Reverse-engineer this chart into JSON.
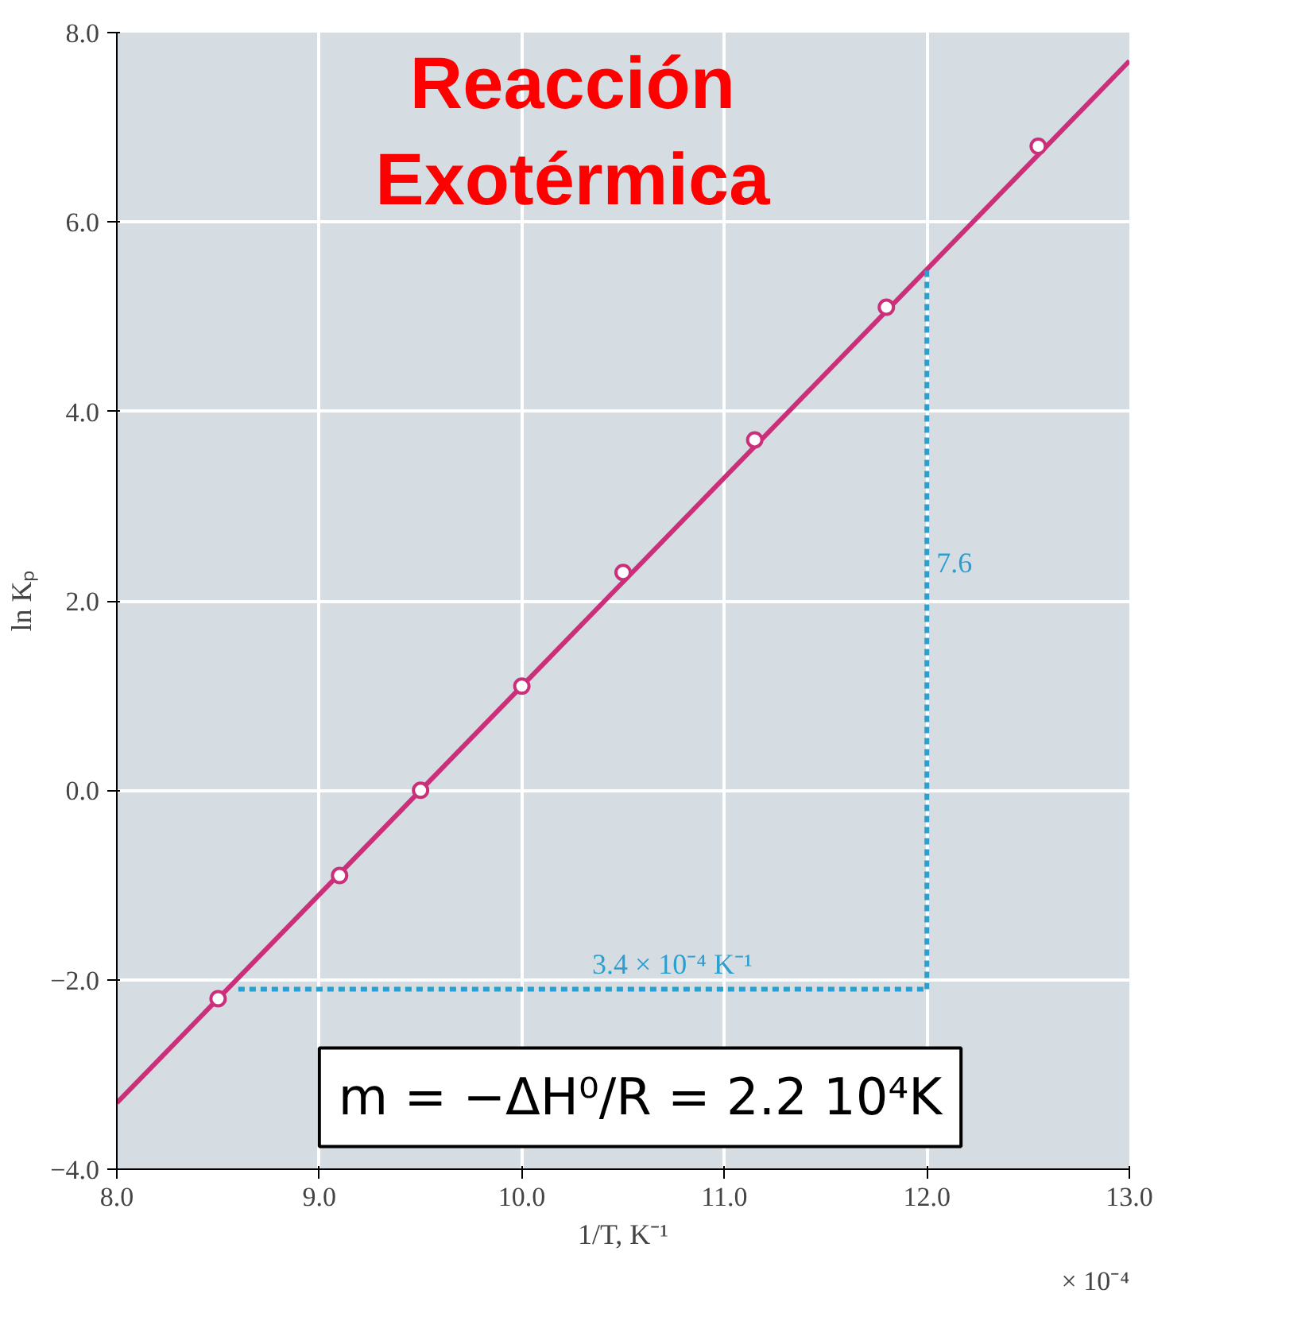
{
  "chart_data": {
    "type": "scatter",
    "title": "Reacción\nExotérmica",
    "xlabel": "1/T, K⁻¹",
    "ylabel": "ln Kₚ",
    "xlim": [
      8.0,
      13.0
    ],
    "xticks": [
      {
        "value": 8,
        "label": "8.0"
      },
      {
        "value": 9,
        "label": "9.0"
      },
      {
        "value": 10,
        "label": "10.0"
      },
      {
        "value": 11,
        "label": "11.0"
      },
      {
        "value": 12,
        "label": "12.0"
      },
      {
        "value": 13,
        "label": "13.0"
      }
    ],
    "ylim": [
      -4.0,
      8.0
    ],
    "yticks": [
      {
        "value": -4,
        "label": "−4.0"
      },
      {
        "value": -2,
        "label": "−2.0"
      },
      {
        "value": 0,
        "label": "0.0"
      },
      {
        "value": 2,
        "label": "2.0"
      },
      {
        "value": 4,
        "label": "4.0"
      },
      {
        "value": 6,
        "label": "6.0"
      },
      {
        "value": 8,
        "label": "8.0"
      }
    ],
    "grid": true,
    "series": [
      {
        "type": "line",
        "color": "#cc2f7a",
        "x": [
          8.0,
          13.0
        ],
        "values": [
          -3.3,
          7.7
        ],
        "marker": "none",
        "line_style": "solid"
      },
      {
        "color": "#cc2f7a",
        "x": [
          8.5,
          9.1,
          9.5,
          10.0,
          10.5,
          11.15,
          11.8,
          12.55
        ],
        "values": [
          -2.2,
          -0.9,
          0.0,
          1.1,
          2.3,
          3.7,
          5.1,
          6.8
        ],
        "marker": "circle"
      },
      {
        "type": "line",
        "color": "#2a9fd0",
        "x": [
          8.6,
          12.0
        ],
        "values": [
          -2.1,
          -2.1
        ],
        "marker": "none",
        "line_style": "dashed"
      },
      {
        "type": "line",
        "color": "#2a9fd0",
        "x": [
          12.0,
          12.0
        ],
        "values": [
          -2.1,
          5.5
        ],
        "marker": "none",
        "line_style": "dashed"
      }
    ],
    "annotations": [
      {
        "text": "7.6",
        "x": 12.0,
        "y": 2.2
      },
      {
        "text": "3.4 × 10⁻⁴ K⁻¹",
        "x": 10.3,
        "y": -2.1
      },
      "m = −ΔH⁰/R = 2.2 10⁴K",
      "× 10⁻⁴"
    ]
  }
}
